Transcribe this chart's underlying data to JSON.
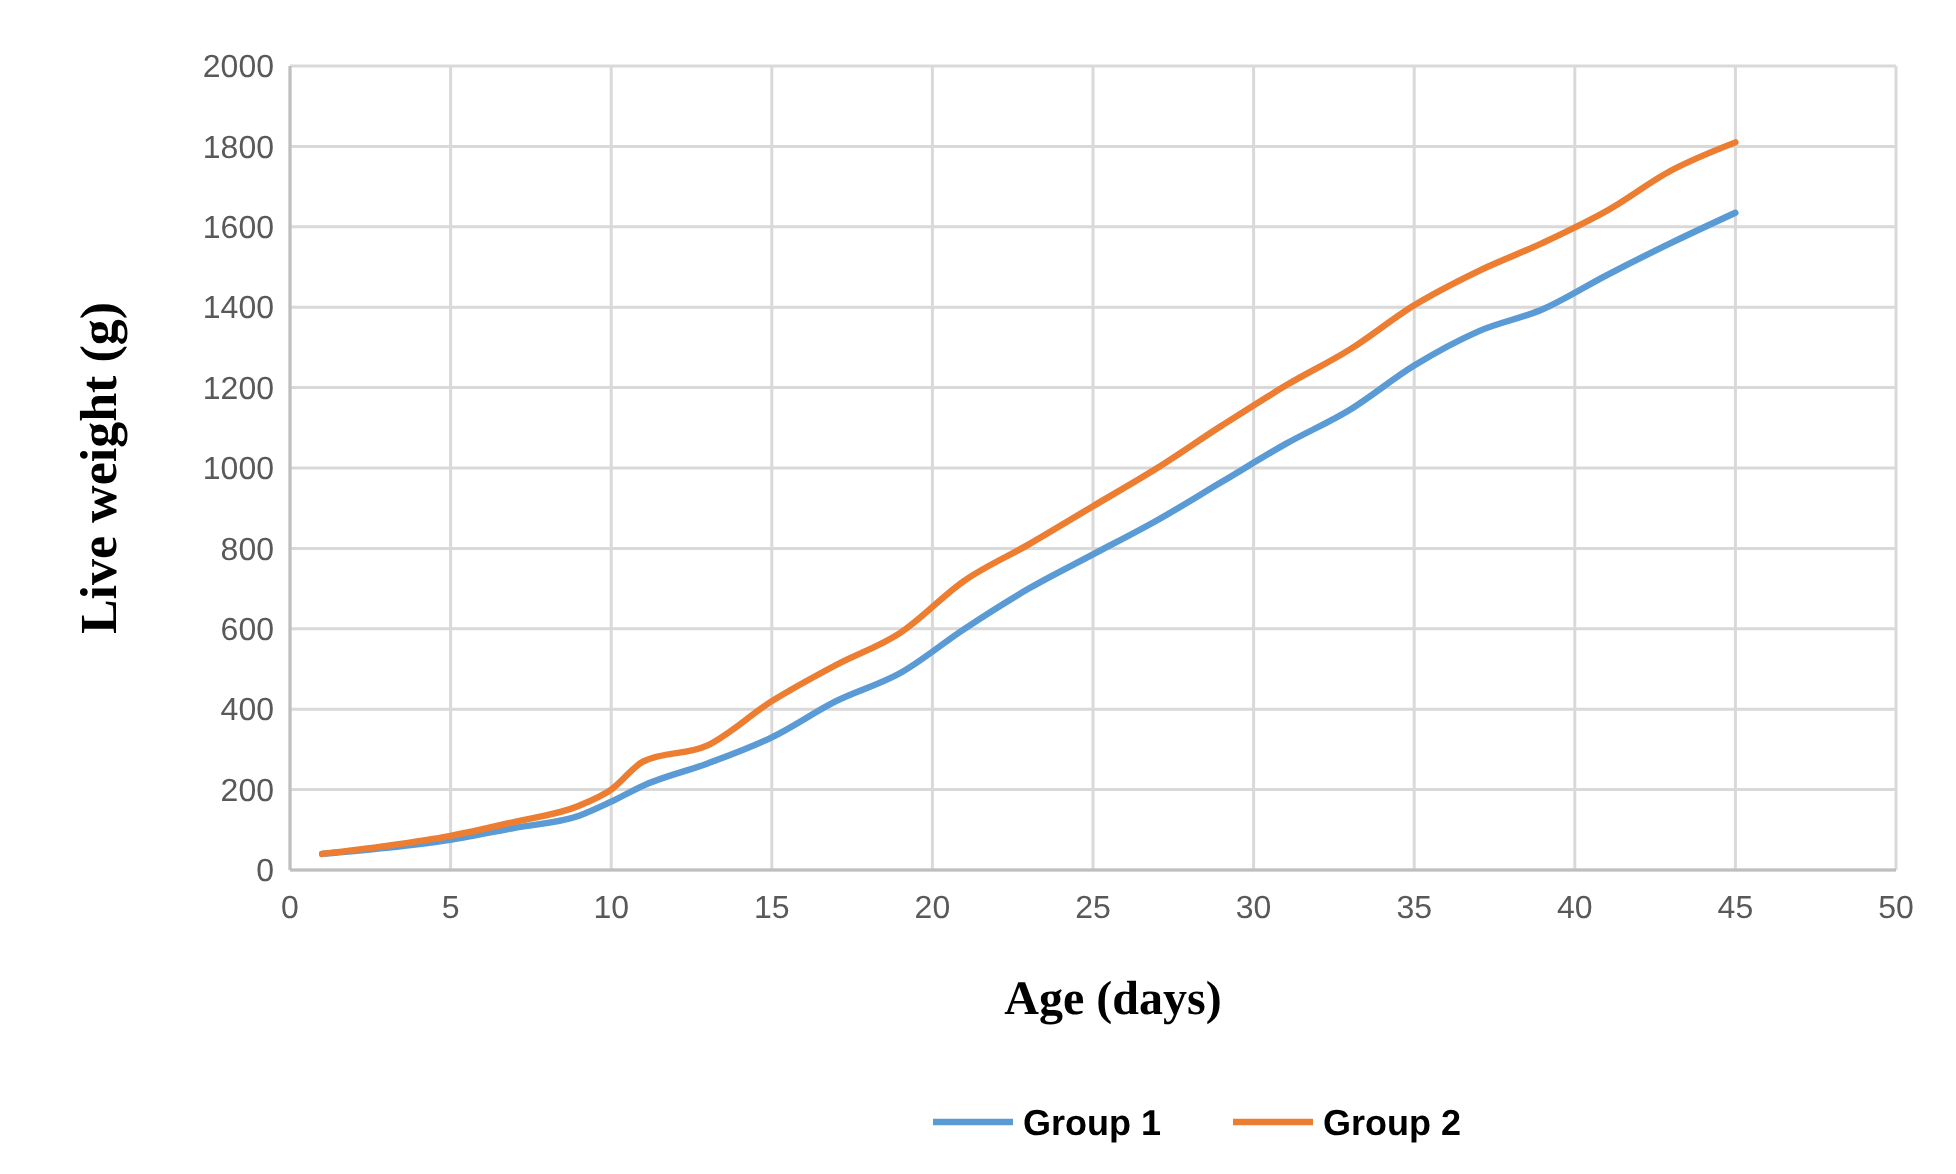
{
  "chart_data": {
    "type": "line",
    "xlabel": "Age (days)",
    "ylabel": "Live weight (g)",
    "x": [
      1,
      3,
      5,
      7,
      9,
      10,
      11,
      13,
      15,
      17,
      19,
      21,
      23,
      25,
      27,
      29,
      31,
      33,
      35,
      37,
      39,
      41,
      43,
      45
    ],
    "series": [
      {
        "name": "Group 1",
        "color": "#5b9bd5",
        "values": [
          40,
          55,
          75,
          105,
          135,
          170,
          210,
          265,
          330,
          420,
          490,
          600,
          700,
          785,
          870,
          965,
          1060,
          1145,
          1255,
          1340,
          1395,
          1480,
          1560,
          1635
        ]
      },
      {
        "name": "Group 2",
        "color": "#ed7d31",
        "values": [
          40,
          60,
          85,
          120,
          160,
          200,
          270,
          310,
          420,
          510,
          590,
          720,
          810,
          905,
          1000,
          1105,
          1205,
          1295,
          1405,
          1490,
          1560,
          1640,
          1740,
          1810
        ]
      }
    ],
    "xlim": [
      0,
      50
    ],
    "xticks": [
      0,
      5,
      10,
      15,
      20,
      25,
      30,
      35,
      40,
      45,
      50
    ],
    "ylim": [
      0,
      2000
    ],
    "yticks": [
      0,
      200,
      400,
      600,
      800,
      1000,
      1200,
      1400,
      1600,
      1800,
      2000
    ],
    "grid": true,
    "legend": "bottom",
    "marker": "none",
    "line_style": "solid"
  }
}
